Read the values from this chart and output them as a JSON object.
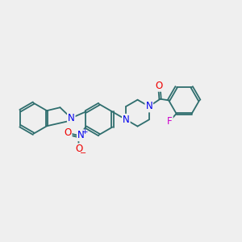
{
  "background_color": "#efefef",
  "bond_color": "#2f6e6e",
  "nitrogen_color": "#0000ee",
  "oxygen_color": "#ee0000",
  "fluorine_color": "#cc00cc",
  "bond_lw": 1.3,
  "dbo": 0.055,
  "font_size": 8.5,
  "xlim": [
    0.2,
    9.2
  ],
  "ylim": [
    3.0,
    7.8
  ],
  "figsize": [
    3.0,
    3.0
  ],
  "dpi": 100
}
